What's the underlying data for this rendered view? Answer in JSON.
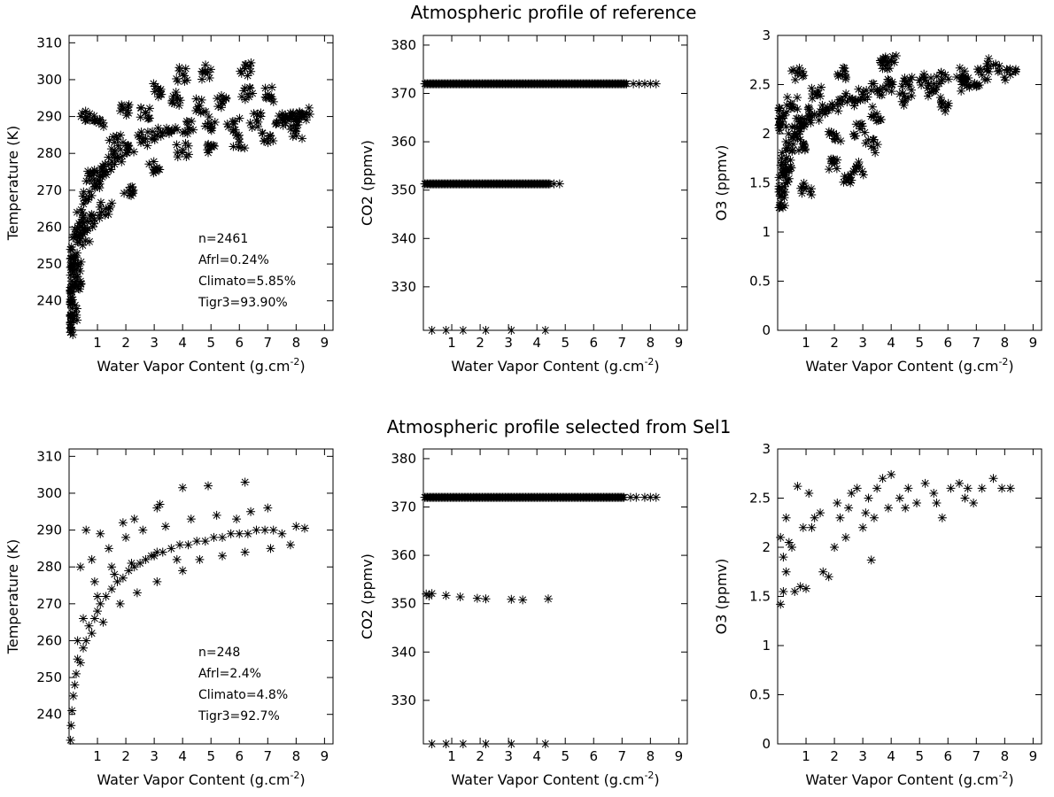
{
  "rows": [
    {
      "title": "Atmospheric profile of reference",
      "annotation": [
        "n=2461",
        "Afrl=0.24%",
        "Climato=5.85%",
        "Tigr3=93.90%"
      ]
    },
    {
      "title": "Atmospheric profile selected from Sel1",
      "annotation": [
        "n=248",
        "Afrl=2.4%",
        "Climato=4.8%",
        "Tigr3=92.7%"
      ]
    }
  ],
  "marker": "asterisk",
  "chart_data": [
    {
      "type": "scatter",
      "row": 0,
      "col": 0,
      "xlabel": "Water Vapor Content (g.cm",
      "xlabel_sup": "-2",
      "xlabel_end": ")",
      "ylabel": "Temperature (K)",
      "xlim": [
        0,
        9.3
      ],
      "ylim": [
        232,
        312
      ],
      "xticks": [
        1,
        2,
        3,
        4,
        5,
        6,
        7,
        8,
        9
      ],
      "yticks": [
        240,
        250,
        260,
        270,
        280,
        290,
        300,
        310
      ],
      "n": 2461,
      "points": [
        [
          0.06,
          232.5
        ],
        [
          0.08,
          236
        ],
        [
          0.1,
          241
        ],
        [
          0.12,
          244
        ],
        [
          0.15,
          248
        ],
        [
          0.2,
          252
        ],
        [
          0.3,
          256
        ],
        [
          0.4,
          260
        ],
        [
          0.5,
          263
        ],
        [
          0.7,
          268
        ],
        [
          0.9,
          271
        ],
        [
          1.1,
          274
        ],
        [
          1.4,
          277
        ],
        [
          1.7,
          279
        ],
        [
          2.1,
          282
        ],
        [
          2.6,
          284
        ],
        [
          3.1,
          285
        ],
        [
          3.6,
          286
        ],
        [
          4.2,
          287
        ],
        [
          5,
          288
        ],
        [
          5.8,
          288
        ],
        [
          6.6,
          289
        ],
        [
          7.5,
          289
        ],
        [
          8.2,
          290
        ],
        [
          0.6,
          290
        ],
        [
          1.1,
          289
        ],
        [
          1.9,
          292
        ],
        [
          3.2,
          297
        ],
        [
          4,
          301.5
        ],
        [
          4.9,
          302
        ],
        [
          6.2,
          303
        ],
        [
          7,
          296
        ],
        [
          7.6,
          289
        ],
        [
          7.9,
          291
        ],
        [
          8.3,
          290.5
        ],
        [
          0.8,
          274
        ],
        [
          1.6,
          283
        ],
        [
          2.7,
          291
        ],
        [
          3.8,
          295
        ],
        [
          4.6,
          293
        ],
        [
          5.4,
          294
        ],
        [
          6.3,
          296
        ],
        [
          2.1,
          270
        ],
        [
          3,
          276
        ],
        [
          4,
          281
        ],
        [
          5,
          282
        ],
        [
          6,
          283
        ],
        [
          7,
          284
        ],
        [
          8,
          286
        ],
        [
          1.3,
          265
        ],
        [
          0.9,
          262
        ],
        [
          0.5,
          258
        ],
        [
          0.3,
          250
        ],
        [
          0.2,
          245
        ],
        [
          0.1,
          238
        ]
      ],
      "annotation_row": 0
    },
    {
      "type": "scatter",
      "row": 0,
      "col": 1,
      "xlabel": "Water Vapor Content (g.cm",
      "xlabel_sup": "-2",
      "xlabel_end": ")",
      "ylabel": "CO2 (ppmv)",
      "xlim": [
        0,
        9.3
      ],
      "ylim": [
        321,
        382
      ],
      "xticks": [
        1,
        2,
        3,
        4,
        5,
        6,
        7,
        8,
        9
      ],
      "yticks": [
        330,
        340,
        350,
        360,
        370,
        380
      ],
      "bands": [
        {
          "y": 372,
          "xmin": 0.05,
          "xmax": 7.2,
          "tail": [
            7.4,
            7.6,
            7.8,
            8,
            8.2
          ]
        },
        {
          "y": 351.3,
          "xmin": 0.05,
          "xmax": 4.5,
          "tail": [
            4.6,
            4.8
          ]
        }
      ],
      "points": [
        [
          0.3,
          321
        ],
        [
          0.8,
          321
        ],
        [
          1.4,
          321
        ],
        [
          2.2,
          321
        ],
        [
          3.1,
          321
        ],
        [
          4.3,
          321
        ]
      ]
    },
    {
      "type": "scatter",
      "row": 0,
      "col": 2,
      "xlabel": "Water Vapor Content (g.cm",
      "xlabel_sup": "-2",
      "xlabel_end": ")",
      "ylabel": "O3 (ppmv)",
      "xlim": [
        0,
        9.3
      ],
      "ylim": [
        0,
        3
      ],
      "xticks": [
        1,
        2,
        3,
        4,
        5,
        6,
        7,
        8,
        9
      ],
      "yticks": [
        0,
        0.5,
        1,
        1.5,
        2,
        2.5,
        3
      ],
      "yticklabels": [
        "0",
        "0.5",
        "1",
        "1.5",
        "2",
        "2.5",
        "3"
      ],
      "points": [
        [
          0.1,
          1.3
        ],
        [
          0.15,
          1.45
        ],
        [
          0.2,
          1.6
        ],
        [
          0.3,
          1.75
        ],
        [
          0.4,
          1.9
        ],
        [
          0.6,
          2
        ],
        [
          0.8,
          2.1
        ],
        [
          1,
          2.15
        ],
        [
          1.3,
          2.2
        ],
        [
          1.7,
          2.25
        ],
        [
          2.1,
          2.3
        ],
        [
          2.6,
          2.35
        ],
        [
          3,
          2.4
        ],
        [
          3.5,
          2.45
        ],
        [
          4,
          2.5
        ],
        [
          4.6,
          2.5
        ],
        [
          5.2,
          2.55
        ],
        [
          5.8,
          2.55
        ],
        [
          6.5,
          2.6
        ],
        [
          7.2,
          2.6
        ],
        [
          7.6,
          2.7
        ],
        [
          8.2,
          2.6
        ],
        [
          0.7,
          2.62
        ],
        [
          1,
          1.45
        ],
        [
          1.9,
          1.7
        ],
        [
          2.5,
          1.55
        ],
        [
          2.8,
          1.65
        ],
        [
          3.3,
          1.87
        ],
        [
          3.7,
          2.7
        ],
        [
          4,
          2.74
        ],
        [
          5.8,
          2.3
        ],
        [
          6.9,
          2.5
        ],
        [
          2.2,
          2.6
        ],
        [
          1.4,
          2.4
        ],
        [
          0.9,
          1.9
        ],
        [
          0.5,
          2.3
        ],
        [
          0.2,
          2.2
        ],
        [
          0.1,
          2.1
        ],
        [
          0.3,
          1.6
        ],
        [
          2,
          1.95
        ],
        [
          2.9,
          2.05
        ],
        [
          3.5,
          2.2
        ],
        [
          4.5,
          2.35
        ],
        [
          5.5,
          2.45
        ],
        [
          6.5,
          2.5
        ]
      ]
    },
    {
      "type": "scatter",
      "row": 1,
      "col": 0,
      "xlabel": "Water Vapor Content (g.cm",
      "xlabel_sup": "-2",
      "xlabel_end": ")",
      "ylabel": "Temperature (K)",
      "xlim": [
        0,
        9.3
      ],
      "ylim": [
        232,
        312
      ],
      "xticks": [
        1,
        2,
        3,
        4,
        5,
        6,
        7,
        8,
        9
      ],
      "yticks": [
        240,
        250,
        260,
        270,
        280,
        290,
        300,
        310
      ],
      "n": 248,
      "points": [
        [
          0.05,
          233
        ],
        [
          0.07,
          237
        ],
        [
          0.1,
          241
        ],
        [
          0.15,
          245
        ],
        [
          0.2,
          248
        ],
        [
          0.25,
          251
        ],
        [
          0.3,
          255
        ],
        [
          0.4,
          254
        ],
        [
          0.5,
          258
        ],
        [
          0.6,
          260
        ],
        [
          0.7,
          264
        ],
        [
          0.8,
          262
        ],
        [
          0.9,
          266
        ],
        [
          1,
          268
        ],
        [
          1.1,
          270
        ],
        [
          1.3,
          272
        ],
        [
          1.5,
          274
        ],
        [
          1.7,
          276
        ],
        [
          1.9,
          277
        ],
        [
          2.1,
          279
        ],
        [
          2.3,
          280
        ],
        [
          2.5,
          281
        ],
        [
          2.7,
          282
        ],
        [
          2.9,
          283
        ],
        [
          3.1,
          284
        ],
        [
          3.3,
          284
        ],
        [
          3.6,
          285
        ],
        [
          3.9,
          286
        ],
        [
          4.2,
          286
        ],
        [
          4.5,
          287
        ],
        [
          4.8,
          287
        ],
        [
          5.1,
          288
        ],
        [
          5.4,
          288
        ],
        [
          5.7,
          289
        ],
        [
          6,
          289
        ],
        [
          6.3,
          289
        ],
        [
          6.6,
          290
        ],
        [
          6.9,
          290
        ],
        [
          7.2,
          290
        ],
        [
          7.5,
          289
        ],
        [
          7.8,
          286
        ],
        [
          8,
          291
        ],
        [
          8.3,
          290.5
        ],
        [
          0.6,
          290
        ],
        [
          1.1,
          289
        ],
        [
          1.9,
          292
        ],
        [
          2.3,
          293
        ],
        [
          3.2,
          297
        ],
        [
          3.1,
          296
        ],
        [
          4,
          301.5
        ],
        [
          4.9,
          302
        ],
        [
          6.2,
          303
        ],
        [
          6.4,
          295
        ],
        [
          7,
          296
        ],
        [
          0.4,
          280
        ],
        [
          0.8,
          282
        ],
        [
          1.4,
          285
        ],
        [
          2,
          288
        ],
        [
          2.6,
          290
        ],
        [
          3.4,
          291
        ],
        [
          4.3,
          293
        ],
        [
          5.2,
          294
        ],
        [
          5.9,
          293
        ],
        [
          0.3,
          260
        ],
        [
          0.5,
          266
        ],
        [
          1,
          272
        ],
        [
          1.6,
          278
        ],
        [
          2.2,
          281
        ],
        [
          3,
          283
        ],
        [
          3.8,
          282
        ],
        [
          4.6,
          282
        ],
        [
          5.4,
          283
        ],
        [
          6.2,
          284
        ],
        [
          7.1,
          285
        ],
        [
          1.2,
          265
        ],
        [
          1.8,
          270
        ],
        [
          2.4,
          273
        ],
        [
          3.1,
          276
        ],
        [
          4,
          279
        ],
        [
          0.9,
          276
        ],
        [
          1.5,
          280
        ]
      ]
    },
    {
      "type": "scatter",
      "row": 1,
      "col": 1,
      "xlabel": "Water Vapor Content (g.cm",
      "xlabel_sup": "-2",
      "xlabel_end": ")",
      "ylabel": "CO2 (ppmv)",
      "xlim": [
        0,
        9.3
      ],
      "ylim": [
        321,
        382
      ],
      "xticks": [
        1,
        2,
        3,
        4,
        5,
        6,
        7,
        8,
        9
      ],
      "yticks": [
        330,
        340,
        350,
        360,
        370,
        380
      ],
      "bands": [
        {
          "y": 372,
          "xmin": 0.05,
          "xmax": 7.1,
          "tail": [
            7.3,
            7.5,
            7.8,
            8,
            8.2
          ]
        }
      ],
      "points": [
        [
          0.1,
          352
        ],
        [
          0.2,
          351.6
        ],
        [
          0.3,
          352.1
        ],
        [
          0.8,
          351.7
        ],
        [
          1.3,
          351.4
        ],
        [
          1.9,
          351.1
        ],
        [
          2.2,
          351
        ],
        [
          3.1,
          350.9
        ],
        [
          3.5,
          350.8
        ],
        [
          4.4,
          351
        ],
        [
          0.3,
          321
        ],
        [
          0.8,
          321
        ],
        [
          1.4,
          321
        ],
        [
          2.2,
          321
        ],
        [
          3.1,
          321
        ],
        [
          4.3,
          321
        ]
      ]
    },
    {
      "type": "scatter",
      "row": 1,
      "col": 2,
      "xlabel": "Water Vapor Content (g.cm",
      "xlabel_sup": "-2",
      "xlabel_end": ")",
      "ylabel": "O3 (ppmv)",
      "xlim": [
        0,
        9.3
      ],
      "ylim": [
        0,
        3
      ],
      "xticks": [
        1,
        2,
        3,
        4,
        5,
        6,
        7,
        8,
        9
      ],
      "yticks": [
        0,
        0.5,
        1,
        1.5,
        2,
        2.5,
        3
      ],
      "yticklabels": [
        "0",
        "0.5",
        "1",
        "1.5",
        "2",
        "2.5",
        "3"
      ],
      "points": [
        [
          0.1,
          1.42
        ],
        [
          0.2,
          1.55
        ],
        [
          0.3,
          1.75
        ],
        [
          0.2,
          1.9
        ],
        [
          0.1,
          2.1
        ],
        [
          0.3,
          2.3
        ],
        [
          0.5,
          2
        ],
        [
          0.6,
          1.55
        ],
        [
          0.8,
          1.6
        ],
        [
          1,
          1.58
        ],
        [
          0.9,
          2.2
        ],
        [
          0.7,
          2.62
        ],
        [
          1.1,
          2.55
        ],
        [
          1.3,
          2.3
        ],
        [
          1.6,
          1.75
        ],
        [
          1.8,
          1.7
        ],
        [
          2,
          2
        ],
        [
          2.2,
          2.3
        ],
        [
          2.4,
          2.1
        ],
        [
          2.5,
          2.4
        ],
        [
          2.8,
          2.6
        ],
        [
          3,
          2.2
        ],
        [
          3.2,
          2.5
        ],
        [
          3.3,
          1.87
        ],
        [
          3.5,
          2.6
        ],
        [
          3.7,
          2.7
        ],
        [
          3.9,
          2.4
        ],
        [
          4,
          2.74
        ],
        [
          4.3,
          2.5
        ],
        [
          4.6,
          2.6
        ],
        [
          4.9,
          2.45
        ],
        [
          5.2,
          2.65
        ],
        [
          5.5,
          2.55
        ],
        [
          5.8,
          2.3
        ],
        [
          6.1,
          2.6
        ],
        [
          6.4,
          2.65
        ],
        [
          6.7,
          2.6
        ],
        [
          6.9,
          2.45
        ],
        [
          7.2,
          2.6
        ],
        [
          7.6,
          2.7
        ],
        [
          7.9,
          2.6
        ],
        [
          8.2,
          2.6
        ],
        [
          1.5,
          2.35
        ],
        [
          2.6,
          2.55
        ],
        [
          3.4,
          2.3
        ],
        [
          4.5,
          2.4
        ],
        [
          5.6,
          2.45
        ],
        [
          6.6,
          2.5
        ],
        [
          0.4,
          2.05
        ],
        [
          1.2,
          2.2
        ],
        [
          2.1,
          2.45
        ],
        [
          3.1,
          2.35
        ]
      ]
    }
  ]
}
